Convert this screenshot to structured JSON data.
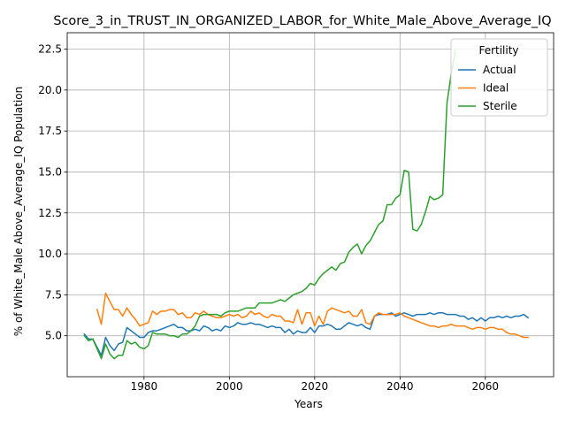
{
  "chart_data": {
    "type": "line",
    "title": "Score_3_in_TRUST_IN_ORGANIZED_LABOR_for_White_Male_Above_Average_IQ",
    "xlabel": "Years",
    "ylabel": "% of White_Male Above_Average_IQ Population",
    "xlim": [
      1962,
      2076
    ],
    "ylim": [
      2.5,
      23.5
    ],
    "xticks": [
      1980,
      2000,
      2020,
      2040,
      2060
    ],
    "yticks": [
      5.0,
      7.5,
      10.0,
      12.5,
      15.0,
      17.5,
      20.0,
      22.5
    ],
    "grid": true,
    "legend": {
      "title": "Fertility",
      "position": "upper-right"
    },
    "series": [
      {
        "name": "Actual",
        "color": "#1f77b4",
        "x": [
          1966,
          1967,
          1968,
          1969,
          1970,
          1971,
          1972,
          1973,
          1974,
          1975,
          1976,
          1977,
          1978,
          1979,
          1980,
          1981,
          1982,
          1983,
          1984,
          1985,
          1986,
          1987,
          1988,
          1989,
          1990,
          1991,
          1992,
          1993,
          1994,
          1995,
          1996,
          1997,
          1998,
          1999,
          2000,
          2001,
          2002,
          2003,
          2004,
          2005,
          2006,
          2007,
          2008,
          2009,
          2010,
          2011,
          2012,
          2013,
          2014,
          2015,
          2016,
          2017,
          2018,
          2019,
          2020,
          2021,
          2022,
          2023,
          2024,
          2025,
          2026,
          2027,
          2028,
          2029,
          2030,
          2031,
          2032,
          2033,
          2034,
          2035,
          2036,
          2037,
          2038,
          2039,
          2040,
          2041,
          2042,
          2043,
          2044,
          2045,
          2046,
          2047,
          2048,
          2049,
          2050,
          2051,
          2052,
          2053,
          2054,
          2055,
          2056,
          2057,
          2058,
          2059,
          2060,
          2061,
          2062,
          2063,
          2064,
          2065,
          2066,
          2067,
          2068,
          2069,
          2070
        ],
        "y": [
          5.1,
          4.8,
          4.8,
          4.3,
          3.8,
          4.9,
          4.4,
          4.1,
          4.5,
          4.6,
          5.5,
          5.3,
          5.1,
          4.9,
          4.9,
          5.2,
          5.3,
          5.3,
          5.4,
          5.5,
          5.6,
          5.7,
          5.5,
          5.5,
          5.3,
          5.3,
          5.4,
          5.3,
          5.6,
          5.5,
          5.3,
          5.4,
          5.3,
          5.6,
          5.5,
          5.6,
          5.8,
          5.7,
          5.7,
          5.8,
          5.7,
          5.7,
          5.6,
          5.5,
          5.6,
          5.5,
          5.5,
          5.2,
          5.4,
          5.1,
          5.3,
          5.2,
          5.2,
          5.5,
          5.2,
          5.6,
          5.6,
          5.7,
          5.6,
          5.4,
          5.4,
          5.6,
          5.8,
          5.7,
          5.6,
          5.7,
          5.5,
          5.4,
          6.2,
          6.3,
          6.3,
          6.3,
          6.4,
          6.2,
          6.3,
          6.4,
          6.3,
          6.2,
          6.3,
          6.3,
          6.3,
          6.4,
          6.3,
          6.4,
          6.4,
          6.3,
          6.3,
          6.3,
          6.2,
          6.2,
          6.0,
          6.1,
          5.9,
          6.1,
          5.9,
          6.1,
          6.1,
          6.2,
          6.1,
          6.2,
          6.1,
          6.2,
          6.2,
          6.3,
          6.1
        ]
      },
      {
        "name": "Ideal",
        "color": "#ff7f0e",
        "x": [
          1969,
          1970,
          1971,
          1972,
          1973,
          1974,
          1975,
          1976,
          1977,
          1978,
          1979,
          1980,
          1981,
          1982,
          1983,
          1984,
          1985,
          1986,
          1987,
          1988,
          1989,
          1990,
          1991,
          1992,
          1993,
          1994,
          1995,
          1996,
          1997,
          1998,
          1999,
          2000,
          2001,
          2002,
          2003,
          2004,
          2005,
          2006,
          2007,
          2008,
          2009,
          2010,
          2011,
          2012,
          2013,
          2014,
          2015,
          2016,
          2017,
          2018,
          2019,
          2020,
          2021,
          2022,
          2023,
          2024,
          2025,
          2026,
          2027,
          2028,
          2029,
          2030,
          2031,
          2032,
          2033,
          2034,
          2035,
          2036,
          2037,
          2038,
          2039,
          2040,
          2041,
          2042,
          2043,
          2044,
          2045,
          2046,
          2047,
          2048,
          2049,
          2050,
          2051,
          2052,
          2053,
          2054,
          2055,
          2056,
          2057,
          2058,
          2059,
          2060,
          2061,
          2062,
          2063,
          2064,
          2065,
          2066,
          2067,
          2068,
          2069,
          2070
        ],
        "y": [
          6.6,
          5.7,
          7.6,
          7.1,
          6.6,
          6.6,
          6.2,
          6.7,
          6.3,
          6.0,
          5.6,
          5.7,
          5.8,
          6.5,
          6.3,
          6.5,
          6.5,
          6.6,
          6.6,
          6.3,
          6.4,
          6.1,
          6.1,
          6.4,
          6.3,
          6.5,
          6.3,
          6.2,
          6.1,
          6.1,
          6.2,
          6.3,
          6.2,
          6.3,
          6.1,
          6.2,
          6.5,
          6.3,
          6.4,
          6.2,
          6.1,
          6.3,
          6.2,
          6.2,
          5.9,
          5.9,
          5.8,
          6.6,
          5.7,
          6.4,
          6.4,
          5.6,
          6.2,
          5.7,
          6.5,
          6.7,
          6.6,
          6.5,
          6.4,
          6.5,
          6.2,
          6.2,
          6.6,
          5.8,
          5.7,
          6.2,
          6.4,
          6.3,
          6.3,
          6.3,
          6.3,
          6.4,
          6.2,
          6.1,
          6.0,
          5.9,
          5.8,
          5.7,
          5.6,
          5.6,
          5.5,
          5.6,
          5.6,
          5.7,
          5.6,
          5.6,
          5.6,
          5.5,
          5.4,
          5.5,
          5.5,
          5.4,
          5.5,
          5.5,
          5.4,
          5.4,
          5.2,
          5.1,
          5.1,
          5.0,
          4.9,
          4.9
        ]
      },
      {
        "name": "Sterile",
        "color": "#2ca02c",
        "x": [
          1966,
          1967,
          1968,
          1969,
          1970,
          1971,
          1972,
          1973,
          1974,
          1975,
          1976,
          1977,
          1978,
          1979,
          1980,
          1981,
          1982,
          1983,
          1984,
          1985,
          1986,
          1987,
          1988,
          1989,
          1990,
          1991,
          1992,
          1993,
          1994,
          1995,
          1996,
          1997,
          1998,
          1999,
          2000,
          2001,
          2002,
          2003,
          2004,
          2005,
          2006,
          2007,
          2008,
          2009,
          2010,
          2011,
          2012,
          2013,
          2014,
          2015,
          2016,
          2017,
          2018,
          2019,
          2020,
          2021,
          2022,
          2023,
          2024,
          2025,
          2026,
          2027,
          2028,
          2029,
          2030,
          2031,
          2032,
          2033,
          2034,
          2035,
          2036,
          2037,
          2038,
          2039,
          2040,
          2041,
          2042,
          2043,
          2044,
          2045,
          2046,
          2047,
          2048,
          2049,
          2050,
          2051,
          2052,
          2053
        ],
        "y": [
          5.0,
          4.7,
          4.8,
          4.2,
          3.6,
          4.5,
          3.9,
          3.6,
          3.8,
          3.8,
          4.7,
          4.5,
          4.6,
          4.3,
          4.2,
          4.4,
          5.2,
          5.1,
          5.1,
          5.1,
          5.0,
          5.0,
          4.9,
          5.1,
          5.1,
          5.3,
          5.6,
          6.2,
          6.3,
          6.3,
          6.3,
          6.3,
          6.2,
          6.4,
          6.5,
          6.5,
          6.5,
          6.6,
          6.7,
          6.7,
          6.7,
          7.0,
          7.0,
          7.0,
          7.0,
          7.1,
          7.2,
          7.1,
          7.3,
          7.5,
          7.6,
          7.7,
          7.9,
          8.2,
          8.1,
          8.5,
          8.8,
          9.0,
          9.2,
          9.0,
          9.4,
          9.5,
          10.1,
          10.4,
          10.6,
          10.0,
          10.5,
          10.8,
          11.3,
          11.8,
          12.0,
          13.0,
          13.0,
          13.4,
          13.6,
          15.1,
          15.0,
          11.5,
          11.4,
          11.8,
          12.6,
          13.5,
          13.3,
          13.4,
          13.6,
          19.2,
          21.0,
          22.4
        ]
      }
    ]
  }
}
